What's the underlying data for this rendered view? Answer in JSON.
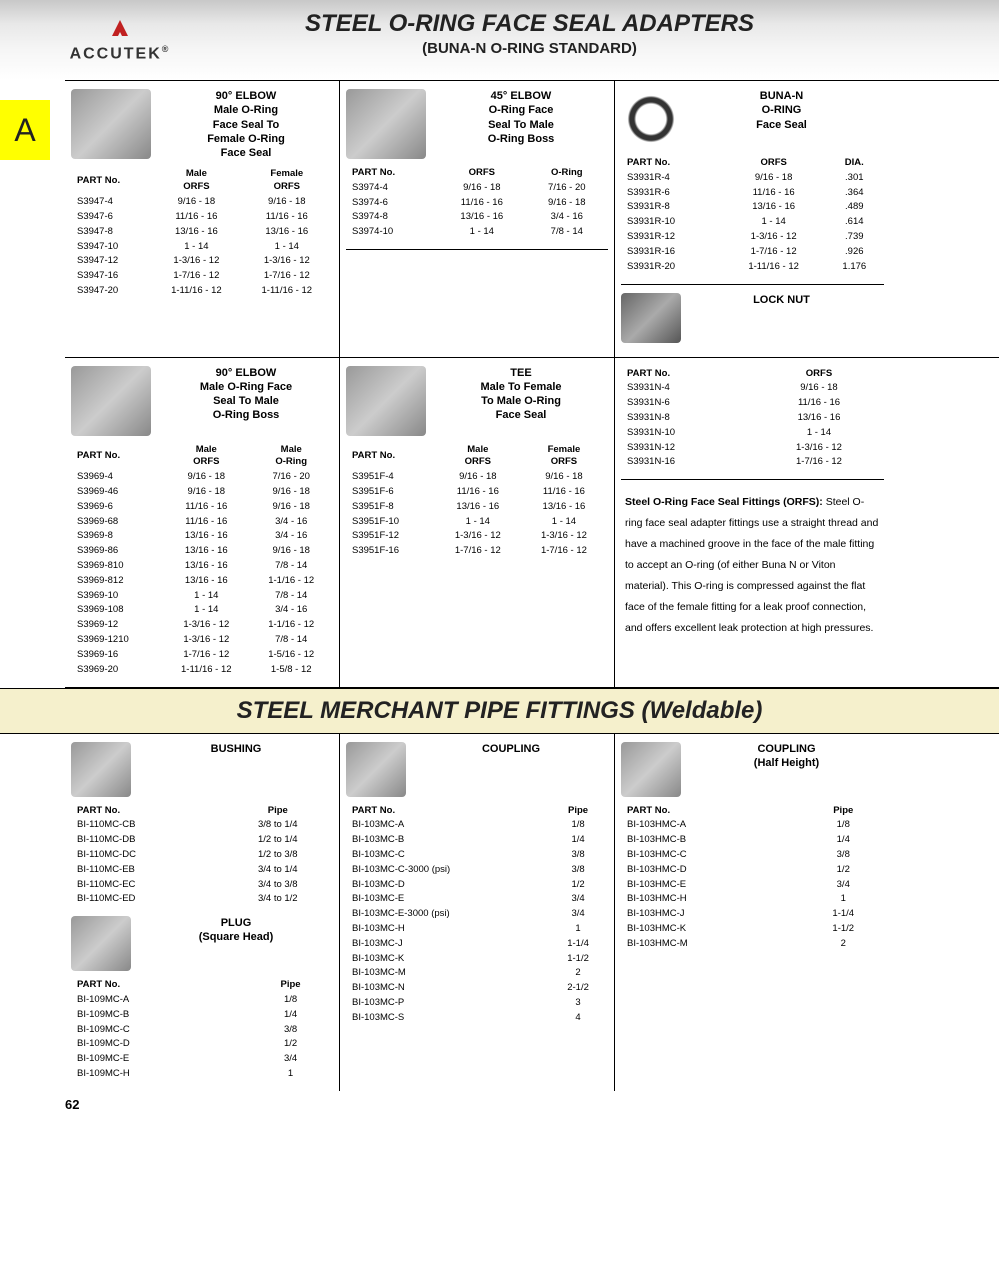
{
  "logo": {
    "text": "ACCUTEK",
    "reg": "®"
  },
  "title": {
    "main": "STEEL O-RING FACE SEAL ADAPTERS",
    "sub": "(BUNA-N O-RING STANDARD)"
  },
  "sideTab": "A",
  "section2Title": "STEEL MERCHANT PIPE FITTINGS (Weldable)",
  "pageNum": "62",
  "labels": {
    "partNo": "PART No."
  },
  "p1": {
    "title": "90° ELBOW\nMale O-Ring\nFace Seal To\nFemale O-Ring\nFace Seal",
    "h1": "Male\nORFS",
    "h2": "Female\nORFS",
    "rows": [
      [
        "S3947-4",
        "9/16 - 18",
        "9/16 - 18"
      ],
      [
        "S3947-6",
        "11/16 - 16",
        "11/16 - 16"
      ],
      [
        "S3947-8",
        "13/16 - 16",
        "13/16 - 16"
      ],
      [
        "S3947-10",
        "1 - 14",
        "1 - 14"
      ],
      [
        "S3947-12",
        "1-3/16 - 12",
        "1-3/16 - 12"
      ],
      [
        "S3947-16",
        "1-7/16 - 12",
        "1-7/16 - 12"
      ],
      [
        "S3947-20",
        "1-11/16 - 12",
        "1-11/16 - 12"
      ]
    ]
  },
  "p2": {
    "title": "45° ELBOW\nO-Ring Face\nSeal To Male\nO-Ring Boss",
    "h1": "ORFS",
    "h2": "O-Ring",
    "rows": [
      [
        "S3974-4",
        "9/16 - 18",
        "7/16 - 20"
      ],
      [
        "S3974-6",
        "11/16 - 16",
        "9/16 - 18"
      ],
      [
        "S3974-8",
        "13/16 - 16",
        "3/4 - 16"
      ],
      [
        "S3974-10",
        "1 - 14",
        "7/8 - 14"
      ]
    ]
  },
  "p3": {
    "title": "BUNA-N\nO-RING\nFace Seal",
    "h1": "ORFS",
    "h2": "DIA.",
    "rows": [
      [
        "S3931R-4",
        "9/16 - 18",
        ".301"
      ],
      [
        "S3931R-6",
        "11/16 - 16",
        ".364"
      ],
      [
        "S3931R-8",
        "13/16 - 16",
        ".489"
      ],
      [
        "S3931R-10",
        "1 - 14",
        ".614"
      ],
      [
        "S3931R-12",
        "1-3/16 - 12",
        ".739"
      ],
      [
        "S3931R-16",
        "1-7/16 - 12",
        ".926"
      ],
      [
        "S3931R-20",
        "1-11/16 - 12",
        "1.176"
      ]
    ]
  },
  "p4": {
    "title": "90° ELBOW\nMale O-Ring Face\nSeal To Male\nO-Ring Boss",
    "h1": "Male\nORFS",
    "h2": "Male\nO-Ring",
    "rows": [
      [
        "S3969-4",
        "9/16 - 18",
        "7/16 - 20"
      ],
      [
        "S3969-46",
        "9/16 - 18",
        "9/16 - 18"
      ],
      [
        "S3969-6",
        "11/16 - 16",
        "9/16 - 18"
      ],
      [
        "S3969-68",
        "11/16 - 16",
        "3/4 - 16"
      ],
      [
        "S3969-8",
        "13/16 - 16",
        "3/4 - 16"
      ],
      [
        "S3969-86",
        "13/16 - 16",
        "9/16 - 18"
      ],
      [
        "S3969-810",
        "13/16 - 16",
        "7/8 - 14"
      ],
      [
        "S3969-812",
        "13/16 - 16",
        "1-1/16 - 12"
      ],
      [
        "S3969-10",
        "1 - 14",
        "7/8 - 14"
      ],
      [
        "S3969-108",
        "1 - 14",
        "3/4 - 16"
      ],
      [
        "S3969-12",
        "1-3/16 - 12",
        "1-1/16 - 12"
      ],
      [
        "S3969-1210",
        "1-3/16 - 12",
        "7/8 - 14"
      ],
      [
        "S3969-16",
        "1-7/16 - 12",
        "1-5/16 - 12"
      ],
      [
        "S3969-20",
        "1-11/16 - 12",
        "1-5/8 - 12"
      ]
    ]
  },
  "p5": {
    "title": "TEE\nMale To Female\nTo Male O-Ring\nFace Seal",
    "h1": "Male\nORFS",
    "h2": "Female\nORFS",
    "rows": [
      [
        "S3951F-4",
        "9/16 - 18",
        "9/16 - 18"
      ],
      [
        "S3951F-6",
        "11/16 - 16",
        "11/16 - 16"
      ],
      [
        "S3951F-8",
        "13/16 - 16",
        "13/16 - 16"
      ],
      [
        "S3951F-10",
        "1 - 14",
        "1 - 14"
      ],
      [
        "S3951F-12",
        "1-3/16 - 12",
        "1-3/16 - 12"
      ],
      [
        "S3951F-16",
        "1-7/16 - 12",
        "1-7/16 - 12"
      ]
    ]
  },
  "p6": {
    "title": "LOCK NUT",
    "h1": "ORFS",
    "rows": [
      [
        "S3931N-4",
        "9/16 - 18"
      ],
      [
        "S3931N-6",
        "11/16 - 16"
      ],
      [
        "S3931N-8",
        "13/16 - 16"
      ],
      [
        "S3931N-10",
        "1 - 14"
      ],
      [
        "S3931N-12",
        "1-3/16 - 12"
      ],
      [
        "S3931N-16",
        "1-7/16 - 12"
      ]
    ]
  },
  "desc": {
    "head": "Steel O-Ring Face Seal Fittings (ORFS):",
    "body": "Steel O-ring face seal adapter fittings use a straight thread and have a machined groove in the face of the male fitting to accept an O-ring (of either Buna N or Viton material). This O-ring is compressed against the flat face of the female fitting for a leak proof connection, and offers excellent leak protection at high pressures."
  },
  "m1": {
    "title": "BUSHING",
    "h1": "Pipe",
    "rows": [
      [
        "BI-110MC-CB",
        "3/8 to 1/4"
      ],
      [
        "BI-110MC-DB",
        "1/2 to 1/4"
      ],
      [
        "BI-110MC-DC",
        "1/2 to 3/8"
      ],
      [
        "BI-110MC-EB",
        "3/4 to 1/4"
      ],
      [
        "BI-110MC-EC",
        "3/4 to 3/8"
      ],
      [
        "BI-110MC-ED",
        "3/4 to 1/2"
      ]
    ]
  },
  "m2": {
    "title": "PLUG",
    "sub": "(Square Head)",
    "h1": "Pipe",
    "rows": [
      [
        "BI-109MC-A",
        "1/8"
      ],
      [
        "BI-109MC-B",
        "1/4"
      ],
      [
        "BI-109MC-C",
        "3/8"
      ],
      [
        "BI-109MC-D",
        "1/2"
      ],
      [
        "BI-109MC-E",
        "3/4"
      ],
      [
        "BI-109MC-H",
        "1"
      ]
    ]
  },
  "m3": {
    "title": "COUPLING",
    "h1": "Pipe",
    "rows": [
      [
        "BI-103MC-A",
        "1/8"
      ],
      [
        "BI-103MC-B",
        "1/4"
      ],
      [
        "BI-103MC-C",
        "3/8"
      ],
      [
        "BI-103MC-C-3000 (psi)",
        "3/8"
      ],
      [
        "BI-103MC-D",
        "1/2"
      ],
      [
        "BI-103MC-E",
        "3/4"
      ],
      [
        "BI-103MC-E-3000 (psi)",
        "3/4"
      ],
      [
        "BI-103MC-H",
        "1"
      ],
      [
        "BI-103MC-J",
        "1-1/4"
      ],
      [
        "BI-103MC-K",
        "1-1/2"
      ],
      [
        "BI-103MC-M",
        "2"
      ],
      [
        "BI-103MC-N",
        "2-1/2"
      ],
      [
        "BI-103MC-P",
        "3"
      ],
      [
        "BI-103MC-S",
        "4"
      ]
    ]
  },
  "m4": {
    "title": "COUPLING",
    "sub": "(Half Height)",
    "h1": "Pipe",
    "rows": [
      [
        "BI-103HMC-A",
        "1/8"
      ],
      [
        "BI-103HMC-B",
        "1/4"
      ],
      [
        "BI-103HMC-C",
        "3/8"
      ],
      [
        "BI-103HMC-D",
        "1/2"
      ],
      [
        "BI-103HMC-E",
        "3/4"
      ],
      [
        "BI-103HMC-H",
        "1"
      ],
      [
        "BI-103HMC-J",
        "1-1/4"
      ],
      [
        "BI-103HMC-K",
        "1-1/2"
      ],
      [
        "BI-103HMC-M",
        "2"
      ]
    ]
  }
}
